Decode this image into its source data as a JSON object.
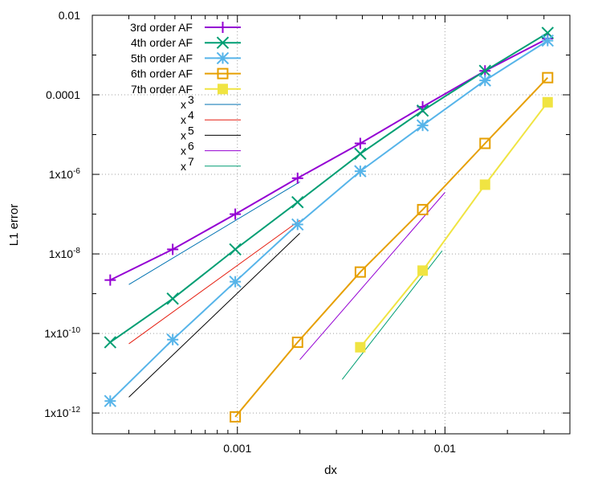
{
  "chart_data": {
    "type": "line",
    "title": "",
    "xlabel": "dx",
    "ylabel": "L1 error",
    "x_scale": "log",
    "y_scale": "log",
    "xlim": [
      0.0002,
      0.04
    ],
    "ylim": [
      3e-13,
      0.01
    ],
    "grid": true,
    "legend_position": "top-left",
    "x_ticks": [
      {
        "value": 0.001,
        "label": "0.001"
      },
      {
        "value": 0.01,
        "label": "0.01"
      }
    ],
    "y_ticks": [
      {
        "value": 1e-12,
        "label": "1x10-12",
        "base": "1x10",
        "exp": "-12"
      },
      {
        "value": 1e-10,
        "label": "1x10-10",
        "base": "1x10",
        "exp": "-10"
      },
      {
        "value": 1e-08,
        "label": "1x10-8",
        "base": "1x10",
        "exp": "-8"
      },
      {
        "value": 1e-06,
        "label": "1x10-6",
        "base": "1x10",
        "exp": "-6"
      },
      {
        "value": 0.0001,
        "label": "0.0001",
        "base": "0.0001",
        "exp": ""
      },
      {
        "value": 0.01,
        "label": "0.01",
        "base": "0.01",
        "exp": ""
      }
    ],
    "series": [
      {
        "name": "3rd order AF",
        "color": "#9400d3",
        "marker": "plus",
        "x": [
          0.000244,
          0.000488,
          0.000977,
          0.00195,
          0.00391,
          0.00781,
          0.0156,
          0.03125
        ],
        "y": [
          2.2e-09,
          1.3e-08,
          1e-07,
          8e-07,
          6e-06,
          5e-05,
          0.0004,
          0.0026
        ]
      },
      {
        "name": "4th order AF",
        "color": "#009e73",
        "marker": "cross",
        "x": [
          0.000244,
          0.000488,
          0.000977,
          0.00195,
          0.00391,
          0.00781,
          0.0156,
          0.03125
        ],
        "y": [
          6e-11,
          7.5e-10,
          1.3e-08,
          2e-07,
          3.3e-06,
          4e-05,
          0.0004,
          0.0036
        ]
      },
      {
        "name": "5th order AF",
        "color": "#56b4e9",
        "marker": "star",
        "x": [
          0.000244,
          0.000488,
          0.000977,
          0.00195,
          0.00391,
          0.00781,
          0.0156,
          0.03125
        ],
        "y": [
          2e-12,
          7e-11,
          2e-09,
          5.5e-08,
          1.2e-06,
          1.7e-05,
          0.00023,
          0.0023
        ]
      },
      {
        "name": "6th order AF",
        "color": "#e69f00",
        "marker": "open-square",
        "x": [
          0.000977,
          0.00195,
          0.00391,
          0.00781,
          0.0156,
          0.03125
        ],
        "y": [
          8e-13,
          6e-11,
          3.5e-09,
          1.3e-07,
          6e-06,
          0.00027
        ]
      },
      {
        "name": "7th order AF",
        "color": "#f0e442",
        "marker": "filled-square",
        "x": [
          0.00391,
          0.00781,
          0.0156,
          0.03125
        ],
        "y": [
          4.5e-11,
          3.8e-09,
          5.5e-07,
          6.5e-05
        ]
      }
    ],
    "reference_lines": [
      {
        "name": "x",
        "exp": "3",
        "color": "#0072b2",
        "x": [
          0.0003,
          0.002
        ],
        "y": [
          1.7e-09,
          6.5e-07
        ]
      },
      {
        "name": "x",
        "exp": "4",
        "color": "#e51e10",
        "x": [
          0.0003,
          0.002
        ],
        "y": [
          5.5e-11,
          7e-08
        ]
      },
      {
        "name": "x",
        "exp": "5",
        "color": "#000000",
        "x": [
          0.0003,
          0.002
        ],
        "y": [
          2.5e-12,
          3.3e-08
        ]
      },
      {
        "name": "x",
        "exp": "6",
        "color": "#9400d3",
        "x": [
          0.002,
          0.01
        ],
        "y": [
          2.2e-11,
          3.5e-07
        ]
      },
      {
        "name": "x",
        "exp": "7",
        "color": "#009e73",
        "x": [
          0.0032,
          0.0097
        ],
        "y": [
          7e-12,
          1.2e-08
        ]
      }
    ]
  }
}
